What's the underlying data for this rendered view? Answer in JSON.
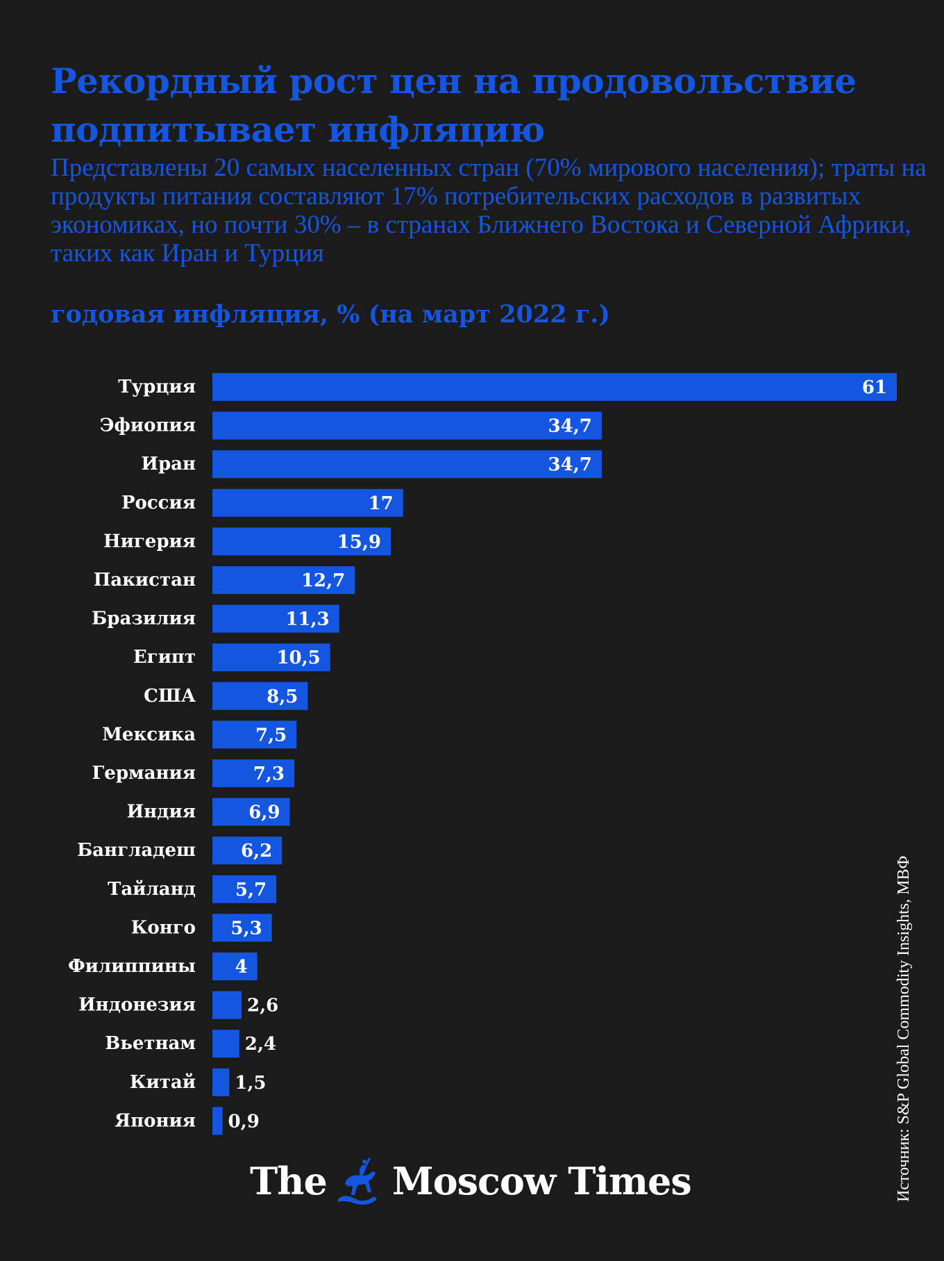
{
  "header": {
    "title": "Рекордный рост цен на продовольствие подпитывает инфляцию",
    "subtitle": "Представлены 20 самых населенных стран (70% мирового населения); траты на продукты питания составляют 17% потребительских расходов в развитых экономиках, но почти 30% – в странах  Ближнего Востока и Северной Африки, таких как Иран и Турция",
    "chart_label": "годовая инфляция, % (на март 2022 г.)"
  },
  "chart_data": {
    "type": "bar",
    "orientation": "horizontal",
    "title": "Рекордный рост цен на продовольствие подпитывает инфляцию",
    "ylabel": "годовая инфляция, % (на март 2022 г.)",
    "xlim": [
      0,
      61
    ],
    "grid": false,
    "categories": [
      "Турция",
      "Эфиопия",
      "Иран",
      "Россия",
      "Нигерия",
      "Пакистан",
      "Бразилия",
      "Египт",
      "США",
      "Мексика",
      "Германия",
      "Индия",
      "Бангладеш",
      "Тайланд",
      "Конго",
      "Филиппины",
      "Индонезия",
      "Вьетнам",
      "Китай",
      "Япония"
    ],
    "values": [
      61,
      34.7,
      34.7,
      17,
      15.9,
      12.7,
      11.3,
      10.5,
      8.5,
      7.5,
      7.3,
      6.9,
      6.2,
      5.7,
      5.3,
      4,
      2.6,
      2.4,
      1.5,
      0.9
    ],
    "value_labels": [
      "61",
      "34,7",
      "34,7",
      "17",
      "15,9",
      "12,7",
      "11,3",
      "10,5",
      "8,5",
      "7,5",
      "7,3",
      "6,9",
      "6,2",
      "5,7",
      "5,3",
      "4",
      "2,6",
      "2,4",
      "1,5",
      "0,9"
    ]
  },
  "footer": {
    "source": "Источник: S&P Global Commodity Insights, МВФ",
    "logo_left": "The",
    "logo_right": "Moscow Times"
  },
  "colors": {
    "background": "#1b1b1b",
    "accent": "#1456e0",
    "bar": "#1456e0",
    "text": "#ffffff"
  },
  "icons": {
    "logo_emblem": "st-george-horseman-icon"
  }
}
